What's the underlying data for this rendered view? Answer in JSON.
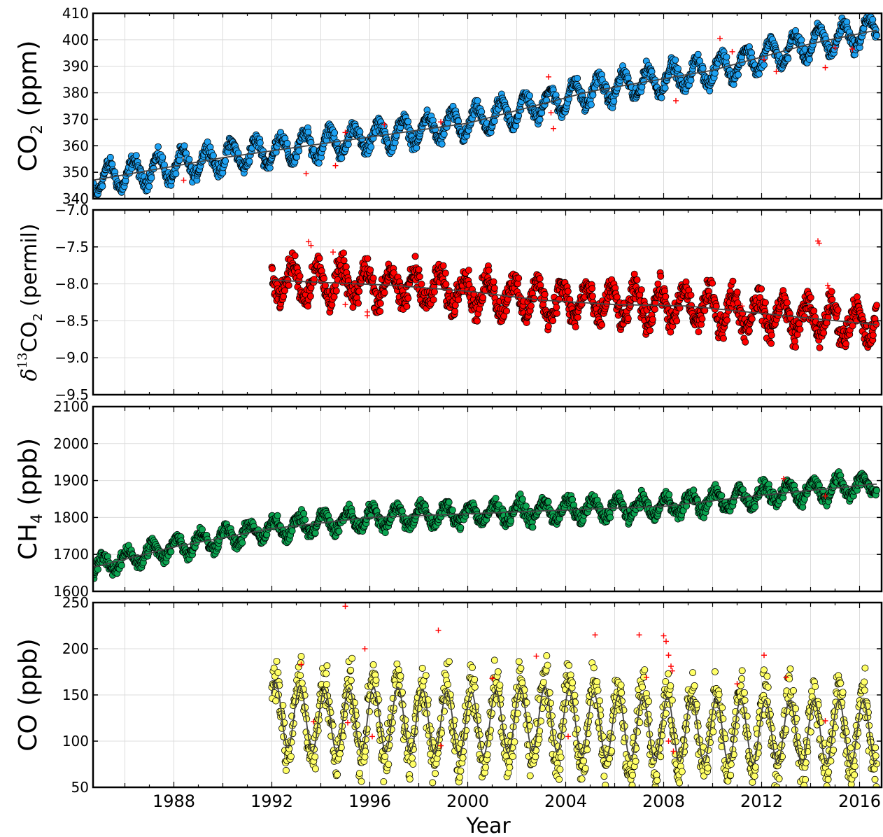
{
  "figure": {
    "xlabel": "Year",
    "x_ticks": [
      "1988",
      "1992",
      "1996",
      "2000",
      "2004",
      "2008",
      "2012",
      "2016"
    ],
    "colors": {
      "co2": "#1da1f2",
      "d13c": "#ff0000",
      "ch4": "#0ba350",
      "co": "#ffff66",
      "fit": "#444444",
      "outlier": "#ff0000"
    }
  },
  "chart_data": [
    {
      "type": "scatter",
      "id": "co2",
      "ylabel_main": "CO",
      "ylabel_sub": "2",
      "ylabel_unit": " (ppm)",
      "xlim": [
        1984.7,
        2016.9
      ],
      "ylim": [
        340,
        410
      ],
      "y_ticks": [
        "340",
        "350",
        "360",
        "370",
        "380",
        "390",
        "400",
        "410"
      ],
      "y_tick_values": [
        340,
        350,
        360,
        370,
        380,
        390,
        400,
        410
      ],
      "trend": {
        "x": [
          1984.7,
          1990,
          1995,
          2000,
          2005,
          2010,
          2014,
          2016.9
        ],
        "y": [
          347,
          355.5,
          362,
          368.5,
          380.5,
          388.5,
          398.5,
          404
        ]
      },
      "seasonal_amplitude": 5,
      "first_year": 1984.7,
      "outliers": [
        [
          1988.4,
          347
        ],
        [
          1993.4,
          349.5
        ],
        [
          1994.6,
          352.5
        ],
        [
          1995.0,
          365
        ],
        [
          1996.6,
          368
        ],
        [
          1998.9,
          369
        ],
        [
          2003.3,
          386
        ],
        [
          2003.4,
          372.5
        ],
        [
          2003.5,
          366.5
        ],
        [
          2008.5,
          377
        ],
        [
          2010.3,
          400.5
        ],
        [
          2010.8,
          395.5
        ],
        [
          2012.1,
          392.5
        ],
        [
          2012.6,
          388
        ],
        [
          2014.6,
          389.5
        ],
        [
          2015.0,
          397
        ],
        [
          2015.7,
          396.5
        ]
      ]
    },
    {
      "type": "scatter",
      "id": "d13c",
      "ylabel_prefix": "δ",
      "ylabel_sup": "13",
      "ylabel_main": "CO",
      "ylabel_sub": "2",
      "ylabel_unit": " (permil)",
      "xlim": [
        1984.7,
        2016.9
      ],
      "ylim": [
        -9.5,
        -7.0
      ],
      "y_ticks": [
        "−9.5",
        "−9.0",
        "−8.5",
        "−8.0",
        "−7.5",
        "−7.0"
      ],
      "y_tick_values": [
        -9.5,
        -9.0,
        -8.5,
        -8.0,
        -7.5,
        -7.0
      ],
      "trend": {
        "x": [
          1992.0,
          1994,
          1997,
          2000,
          2003,
          2006,
          2009,
          2012,
          2016.6
        ],
        "y": [
          -7.95,
          -7.98,
          -8.02,
          -8.1,
          -8.22,
          -8.28,
          -8.3,
          -8.4,
          -8.55
        ]
      },
      "seasonal_amplitude": 0.22,
      "first_year": 1992.0,
      "outliers": [
        [
          1993.5,
          -7.43
        ],
        [
          1993.6,
          -7.48
        ],
        [
          1994.5,
          -7.57
        ],
        [
          1995.0,
          -8.28
        ],
        [
          1995.9,
          -8.38
        ],
        [
          1995.9,
          -8.43
        ],
        [
          2014.3,
          -7.42
        ],
        [
          2014.35,
          -7.45
        ],
        [
          2014.7,
          -8.02
        ],
        [
          2014.75,
          -8.06
        ],
        [
          2012.9,
          -8.18
        ],
        [
          2011.2,
          -8.3
        ],
        [
          2010.8,
          -8.28
        ]
      ]
    },
    {
      "type": "scatter",
      "id": "ch4",
      "ylabel_main": "CH",
      "ylabel_sub": "4",
      "ylabel_unit": " (ppb)",
      "xlim": [
        1984.7,
        2016.9
      ],
      "ylim": [
        1600,
        2100
      ],
      "y_ticks": [
        "1600",
        "1700",
        "1800",
        "1900",
        "2000",
        "2100"
      ],
      "y_tick_values": [
        1600,
        1700,
        1800,
        1900,
        2000,
        2100
      ],
      "trend": {
        "x": [
          1984.7,
          1988,
          1992,
          1996,
          2000,
          2004,
          2008,
          2012,
          2016.6
        ],
        "y": [
          1665,
          1720,
          1770,
          1800,
          1810,
          1820,
          1830,
          1860,
          1890
        ]
      },
      "seasonal_amplitude": 25,
      "first_year": 1984.7,
      "outliers": [
        [
          2012.9,
          1905
        ],
        [
          2014.6,
          1858
        ]
      ]
    },
    {
      "type": "scatter",
      "id": "co",
      "ylabel_main": "CO",
      "ylabel_sub": "",
      "ylabel_unit": " (ppb)",
      "xlim": [
        1984.7,
        2016.9
      ],
      "ylim": [
        50,
        250
      ],
      "y_ticks": [
        "50",
        "100",
        "150",
        "200",
        "250"
      ],
      "y_tick_values": [
        50,
        100,
        150,
        200,
        250
      ],
      "trend": {
        "x": [
          1992.0,
          1994,
          1997,
          2000,
          2003,
          2006,
          2009,
          2012,
          2016.6
        ],
        "y": [
          130,
          122,
          124,
          118,
          125,
          115,
          112,
          110,
          110
        ]
      },
      "seasonal_amplitude": 45,
      "first_year": 1992.0,
      "outliers": [
        [
          1993.2,
          183
        ],
        [
          1995.0,
          246
        ],
        [
          1995.8,
          200
        ],
        [
          1998.8,
          220
        ],
        [
          2001.0,
          168
        ],
        [
          2002.8,
          192
        ],
        [
          2005.2,
          215
        ],
        [
          2007.0,
          215
        ],
        [
          2008.0,
          214
        ],
        [
          2008.1,
          208
        ],
        [
          2008.2,
          193
        ],
        [
          2008.3,
          181
        ],
        [
          2008.35,
          176
        ],
        [
          2008.2,
          100
        ],
        [
          2008.4,
          89
        ],
        [
          2011.0,
          162
        ],
        [
          2012.1,
          193
        ],
        [
          2013.0,
          169
        ],
        [
          2014.6,
          122
        ],
        [
          2007.3,
          169
        ],
        [
          1995.1,
          120
        ],
        [
          1996.1,
          105
        ],
        [
          1998.9,
          95
        ],
        [
          2004.1,
          105
        ],
        [
          1993.7,
          121
        ]
      ]
    }
  ]
}
